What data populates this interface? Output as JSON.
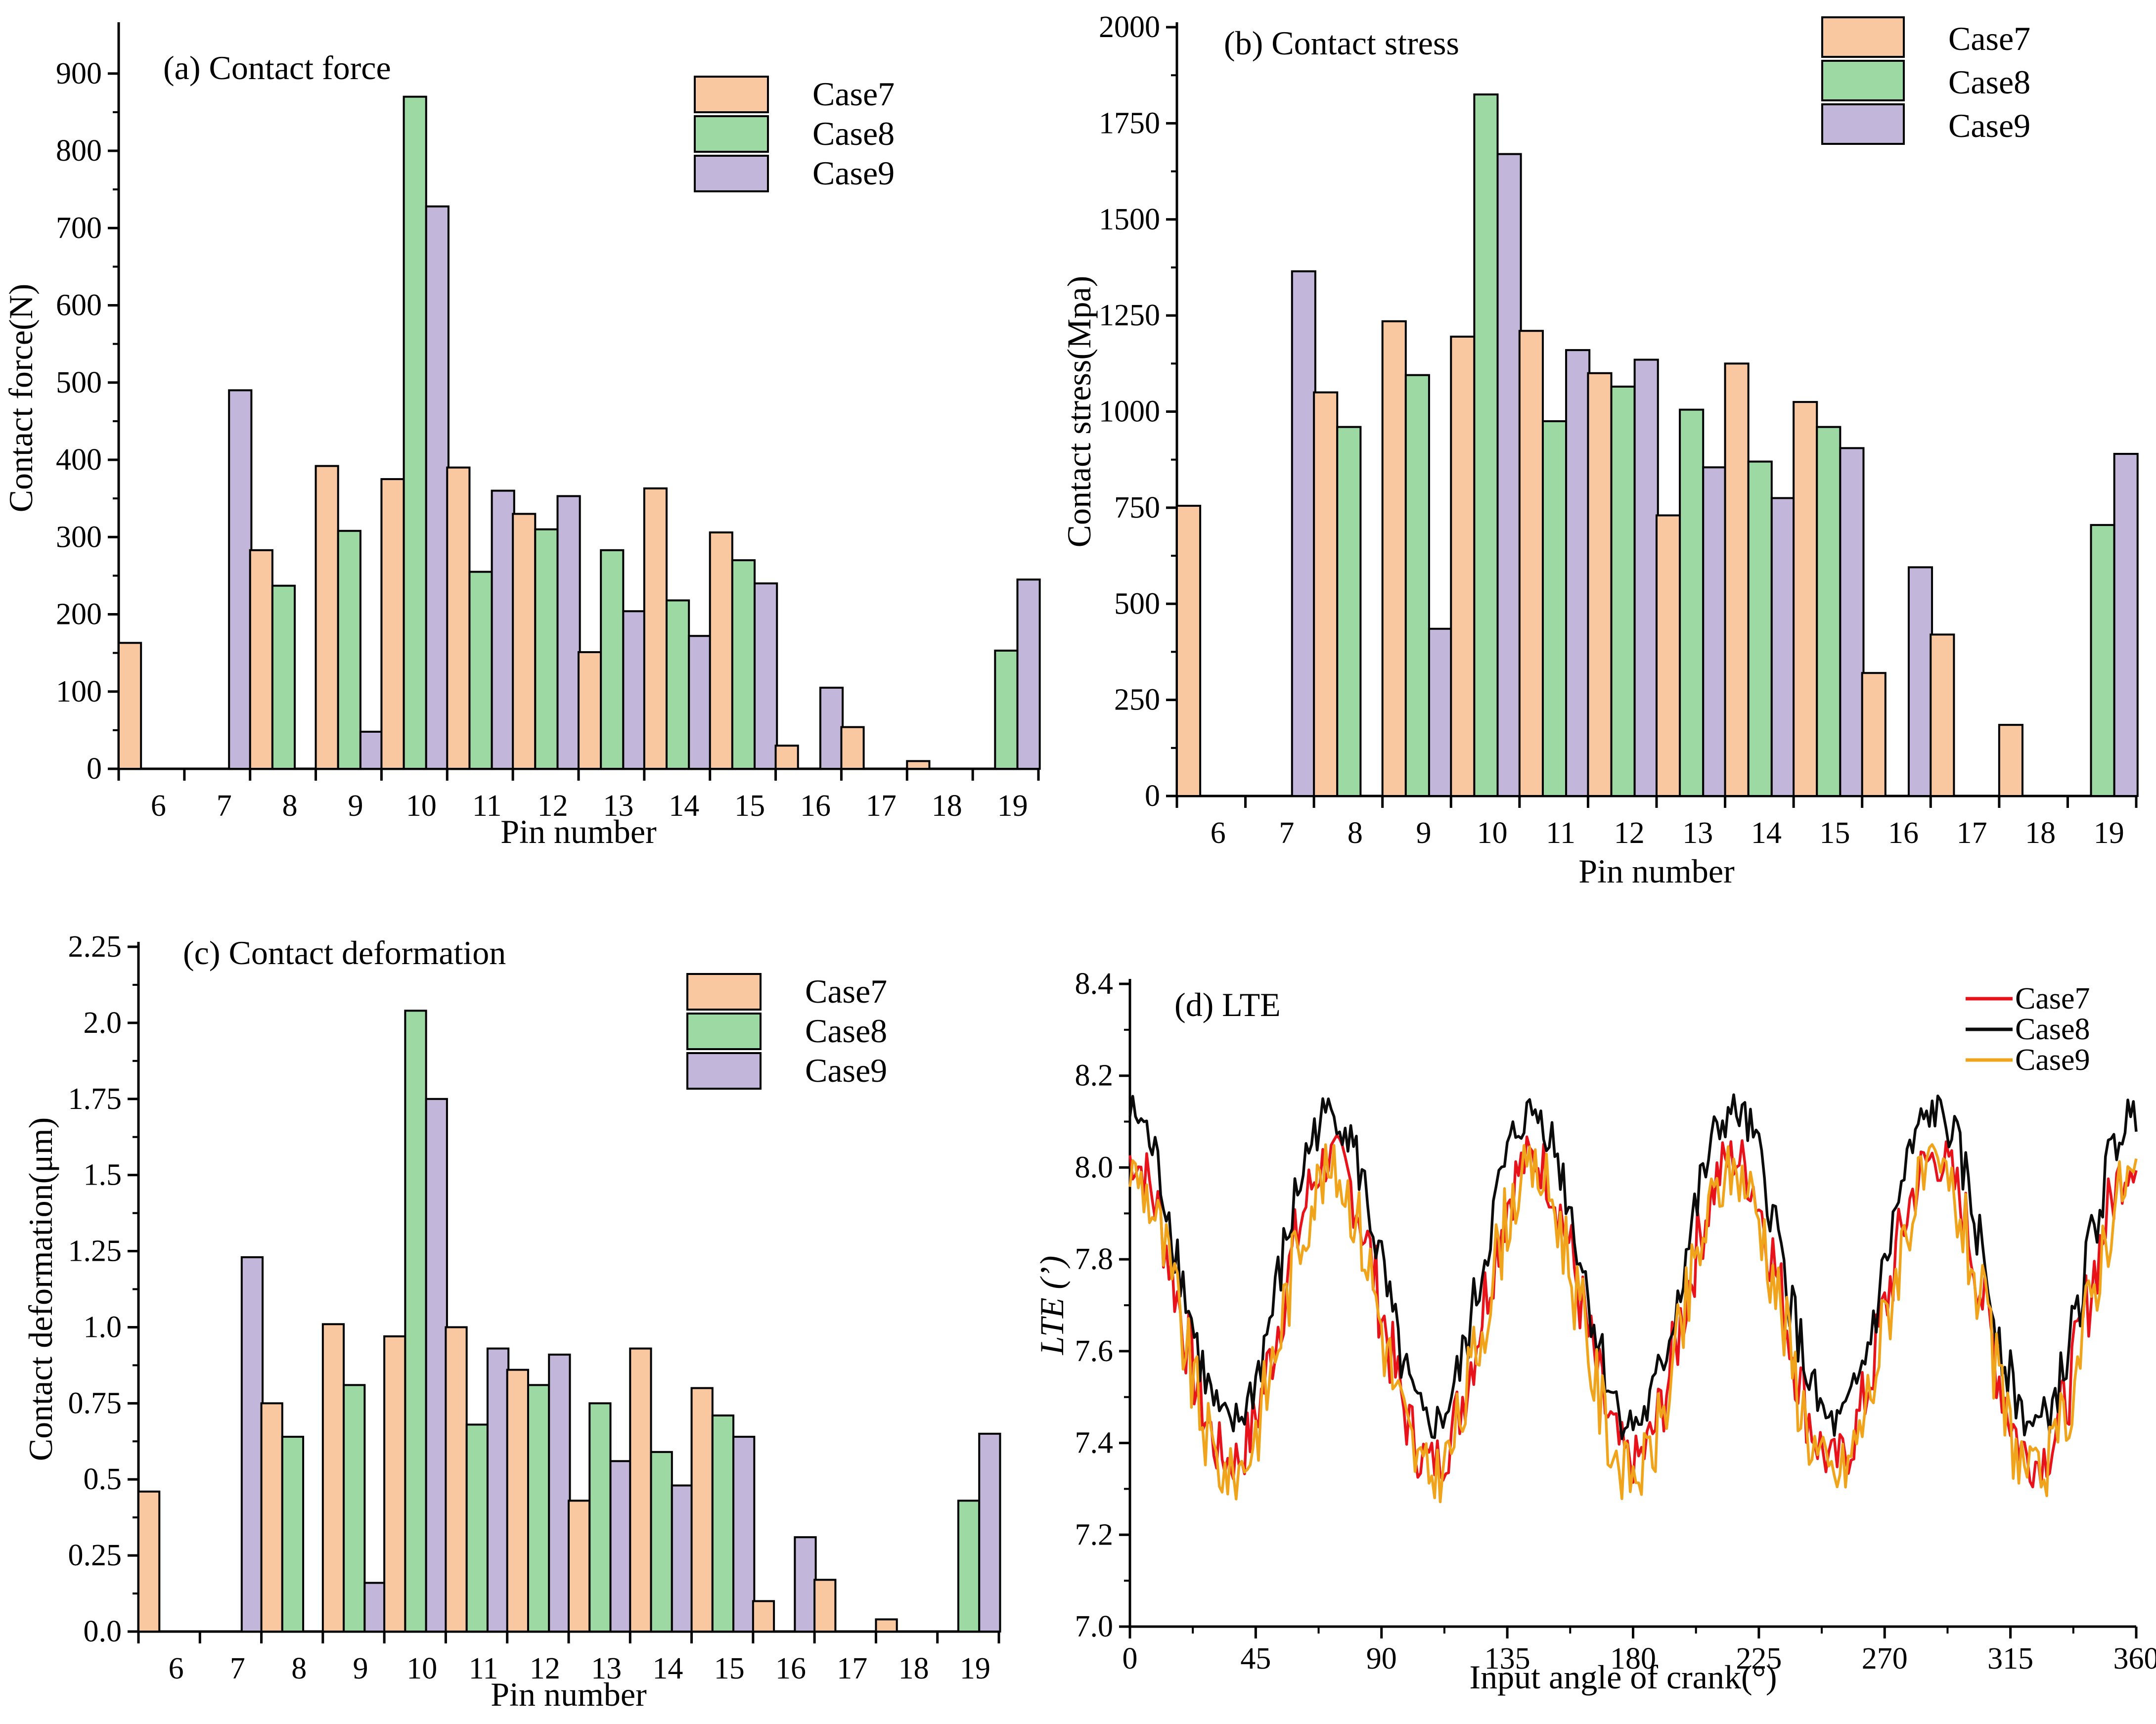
{
  "colors": {
    "case7": "#f9c8a0",
    "case8": "#9dd9a3",
    "case9": "#c2b6da",
    "line7": "#e8121b",
    "line8": "#0b0b0b",
    "line9": "#f0a41c"
  },
  "chart_data": [
    {
      "id": "a",
      "type": "bar",
      "title": "(a) Contact force",
      "xlabel": "Pin number",
      "ylabel": "Contact force(N)",
      "ylim": [
        0,
        960
      ],
      "yticks": [
        0,
        100,
        200,
        300,
        400,
        500,
        600,
        700,
        800,
        900
      ],
      "legend_position": "top-right",
      "categories": [
        "6",
        "7",
        "8",
        "9",
        "10",
        "11",
        "12",
        "13",
        "14",
        "15",
        "16",
        "17",
        "18",
        "19"
      ],
      "series": [
        {
          "name": "Case7",
          "values": [
            163,
            0,
            283,
            392,
            375,
            390,
            330,
            151,
            363,
            306,
            30,
            54,
            10,
            0
          ]
        },
        {
          "name": "Case8",
          "values": [
            0,
            0,
            237,
            308,
            870,
            255,
            310,
            283,
            218,
            270,
            0,
            0,
            0,
            153
          ]
        },
        {
          "name": "Case9",
          "values": [
            0,
            490,
            0,
            48,
            728,
            360,
            353,
            204,
            172,
            240,
            105,
            0,
            0,
            245
          ]
        }
      ]
    },
    {
      "id": "b",
      "type": "bar",
      "title": "(b) Contact stress",
      "xlabel": "Pin number",
      "ylabel": "Contact stress(Mpa)",
      "ylim": [
        0,
        2000
      ],
      "yticks": [
        0,
        250,
        500,
        750,
        1000,
        1250,
        1500,
        1750,
        2000
      ],
      "legend_position": "top-right",
      "categories": [
        "6",
        "7",
        "8",
        "9",
        "10",
        "11",
        "12",
        "13",
        "14",
        "15",
        "16",
        "17",
        "18",
        "19"
      ],
      "series": [
        {
          "name": "Case7",
          "values": [
            755,
            0,
            1050,
            1235,
            1195,
            1210,
            1100,
            730,
            1125,
            1025,
            320,
            420,
            185,
            0
          ]
        },
        {
          "name": "Case8",
          "values": [
            0,
            0,
            960,
            1095,
            1825,
            975,
            1065,
            1005,
            870,
            960,
            0,
            0,
            0,
            705
          ]
        },
        {
          "name": "Case9",
          "values": [
            0,
            1365,
            0,
            435,
            1670,
            1160,
            1135,
            855,
            775,
            905,
            595,
            0,
            0,
            890
          ]
        }
      ]
    },
    {
      "id": "c",
      "type": "bar",
      "title": "(c) Contact deformation",
      "xlabel": "Pin number",
      "ylabel": "Contact deformation(μm)",
      "ylim": [
        0,
        2.25
      ],
      "yticks": [
        "0.0",
        "0.25",
        "0.5",
        "0.75",
        "1.0",
        "1.25",
        "1.5",
        "1.75",
        "2.0",
        "2.25"
      ],
      "legend_position": "top-right",
      "categories": [
        "6",
        "7",
        "8",
        "9",
        "10",
        "11",
        "12",
        "13",
        "14",
        "15",
        "16",
        "17",
        "18",
        "19"
      ],
      "series": [
        {
          "name": "Case7",
          "values": [
            0.46,
            0,
            0.75,
            1.01,
            0.97,
            1.0,
            0.86,
            0.43,
            0.93,
            0.8,
            0.1,
            0.17,
            0.04,
            0
          ]
        },
        {
          "name": "Case8",
          "values": [
            0,
            0,
            0.64,
            0.81,
            2.04,
            0.68,
            0.81,
            0.75,
            0.59,
            0.71,
            0,
            0,
            0,
            0.43
          ]
        },
        {
          "name": "Case9",
          "values": [
            0,
            1.23,
            0,
            0.16,
            1.75,
            0.93,
            0.91,
            0.56,
            0.48,
            0.64,
            0.31,
            0,
            0,
            0.65
          ]
        }
      ]
    },
    {
      "id": "d",
      "type": "line",
      "title": "(d) LTE",
      "xlabel": "Input angle of crank(°)",
      "ylabel": "LTE (’)",
      "xlim": [
        0,
        360
      ],
      "ylim": [
        7.0,
        8.4
      ],
      "xticks": [
        0,
        45,
        90,
        135,
        180,
        225,
        270,
        315,
        360
      ],
      "yticks": [
        "7.0",
        "7.2",
        "7.4",
        "7.6",
        "7.8",
        "8.0",
        "8.2",
        "8.4"
      ],
      "legend_position": "top-right",
      "series": [
        {
          "name": "Case7",
          "base": 7.69,
          "amp": 0.33,
          "phase_deg": 72,
          "period_deg": 72,
          "noise": 0.09,
          "seed": 7,
          "min": 7.14,
          "max": 8.07
        },
        {
          "name": "Case8",
          "base": 7.78,
          "amp": 0.34,
          "phase_deg": 72,
          "period_deg": 72,
          "noise": 0.07,
          "seed": 8,
          "min": 7.3,
          "max": 8.2
        },
        {
          "name": "Case9",
          "base": 7.66,
          "amp": 0.33,
          "phase_deg": 72,
          "period_deg": 72,
          "noise": 0.1,
          "seed": 9,
          "min": 7.12,
          "max": 8.05
        }
      ]
    }
  ]
}
